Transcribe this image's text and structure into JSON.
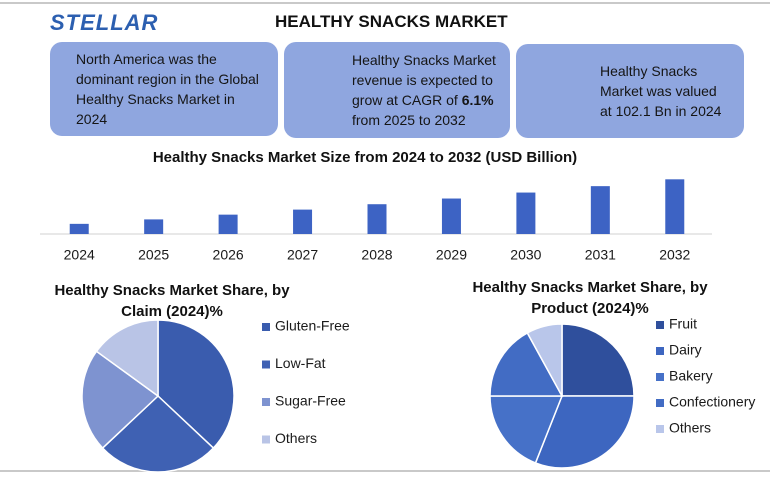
{
  "header": {
    "logo": "STELLAR",
    "title": "HEALTHY SNACKS MARKET"
  },
  "cards": [
    {
      "text": "North America was the dominant region in the Global Healthy Snacks Market in 2024"
    },
    {
      "text": "Healthy Snacks Market revenue is expected to grow at CAGR of",
      "highlight": "6.1%",
      "text_after": "from 2025 to 2032"
    },
    {
      "text": "Healthy Snacks Market was valued at 102.1 Bn in 2024"
    }
  ],
  "chart_data": [
    {
      "type": "bar",
      "title": "Healthy Snacks Market Size from 2024 to 2032 (USD Billion)",
      "categories": [
        "2024",
        "2025",
        "2026",
        "2027",
        "2028",
        "2029",
        "2030",
        "2031",
        "2032"
      ],
      "values": [
        102.1,
        108.3,
        114.9,
        121.9,
        129.4,
        137.3,
        145.6,
        154.5,
        164.0
      ],
      "color": "#3d63c4",
      "ylim": [
        88,
        170
      ]
    },
    {
      "type": "pie",
      "title": "Healthy Snacks Market Share, by Claim (2024)%",
      "categories": [
        "Gluten-Free",
        "Low-Fat",
        "Sugar-Free",
        "Others"
      ],
      "values": [
        37,
        26,
        22,
        15
      ],
      "colors": [
        "#3a5cae",
        "#3f61b3",
        "#7e93d0",
        "#b9c4e6"
      ]
    },
    {
      "type": "pie",
      "title": "Healthy Snacks Market Share, by Product (2024)%",
      "categories": [
        "Fruit",
        "Dairy",
        "Bakery",
        "Confectionery",
        "Others"
      ],
      "values": [
        25,
        31,
        19,
        17,
        8
      ],
      "colors": [
        "#2f4f9c",
        "#3d66c0",
        "#4671c8",
        "#426cc4",
        "#b9c6ea"
      ]
    }
  ]
}
